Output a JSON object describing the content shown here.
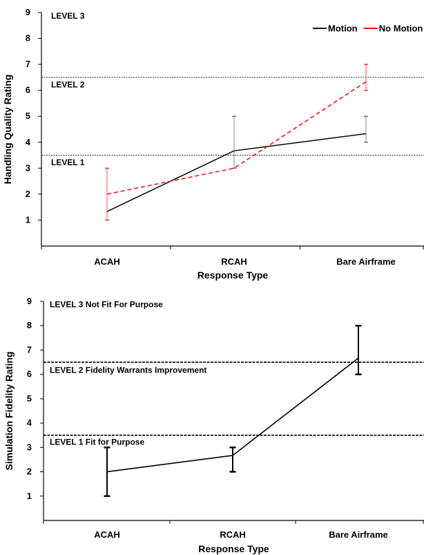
{
  "chart_data": [
    {
      "type": "line",
      "categories": [
        "ACAH",
        "RCAH",
        "Bare Airframe"
      ],
      "xlabel": "Response Type",
      "ylabel": "Handling Quality Rating",
      "ylim": [
        0,
        9
      ],
      "yticks": [
        1,
        2,
        3,
        4,
        5,
        6,
        7,
        8,
        9
      ],
      "grid": false,
      "legend_position": "top-right",
      "level_lines": [
        3.5,
        6.5
      ],
      "level_labels": [
        {
          "text": "LEVEL 3",
          "y": 8.9
        },
        {
          "text": "LEVEL 2",
          "y": 6.25
        },
        {
          "text": "LEVEL 1",
          "y": 3.25
        }
      ],
      "series": [
        {
          "name": "Motion",
          "color": "#000000",
          "dash": false,
          "values": [
            1.33,
            3.67,
            4.33
          ],
          "err_low": [
            1.33,
            3.0,
            4.0
          ],
          "err_high": [
            1.33,
            5.0,
            5.0
          ]
        },
        {
          "name": "No Motion",
          "color": "#ff0000",
          "dash": true,
          "values": [
            2.0,
            3.0,
            6.33
          ],
          "err_low": [
            1.0,
            3.0,
            6.0
          ],
          "err_high": [
            3.0,
            3.0,
            7.0
          ]
        }
      ]
    },
    {
      "type": "line",
      "categories": [
        "ACAH",
        "RCAH",
        "Bare Airframe"
      ],
      "xlabel": "Response Type",
      "ylabel": "Simulation Fidelity Rating",
      "ylim": [
        0,
        9
      ],
      "yticks": [
        1,
        2,
        3,
        4,
        5,
        6,
        7,
        8,
        9
      ],
      "grid": false,
      "level_lines": [
        3.5,
        6.5
      ],
      "level_labels": [
        {
          "text": "LEVEL 3 Not Fit For Purpose",
          "y": 8.9
        },
        {
          "text": "LEVEL 2 Fidelity Warrants Improvement",
          "y": 6.2
        },
        {
          "text": "LEVEL 1 Fit for Purpose",
          "y": 3.25
        }
      ],
      "series": [
        {
          "color": "#000000",
          "dash": false,
          "values": [
            2.0,
            2.67,
            6.67
          ],
          "err_low": [
            1.0,
            2.0,
            6.0
          ],
          "err_high": [
            3.0,
            3.0,
            8.0
          ]
        }
      ]
    }
  ]
}
